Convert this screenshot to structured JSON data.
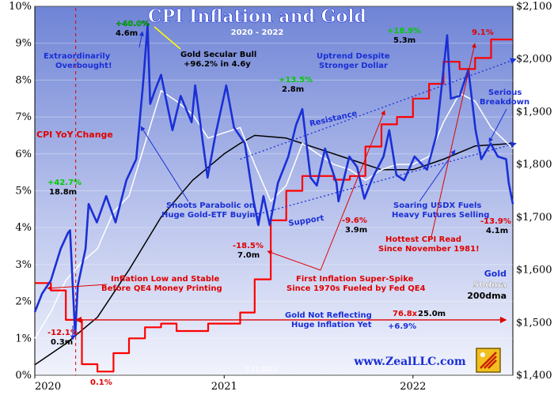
{
  "chart_data": {
    "type": "line",
    "title": "CPI Inflation and Gold",
    "subtitle": "2020 - 2022",
    "date_stamp": "7.13.2022",
    "brand": "www.ZealLLC.com",
    "x_range": [
      "2020-01-01",
      "2022-07-13"
    ],
    "x_tick_labels": [
      {
        "date": "2020-01-01",
        "label": "2020"
      },
      {
        "date": "2021-01-01",
        "label": "2021"
      },
      {
        "date": "2022-01-01",
        "label": "2022"
      }
    ],
    "left_axis": {
      "min": 0,
      "max": 10,
      "unit": "%",
      "ticks": [
        "0%",
        "1%",
        "2%",
        "3%",
        "4%",
        "5%",
        "6%",
        "7%",
        "8%",
        "9%",
        "10%"
      ]
    },
    "right_axis": {
      "min": 1400,
      "max": 2100,
      "ticks": [
        "$1,400",
        "$1,500",
        "$1,600",
        "$1,700",
        "$1,800",
        "$1,900",
        "$2,000",
        "$2,100"
      ]
    },
    "legend": {
      "cpi_label": "CPI YoY Change",
      "gold_label": "Gold",
      "dma50_label": "50dma",
      "dma200_label": "200dma"
    },
    "colors": {
      "cpi": "#ff0000",
      "gold": "#1a2fd6",
      "dma50": "#ffffff",
      "dma200": "#000000",
      "annotation_blue": "#1a2fd6",
      "annotation_red": "#e00000",
      "annotation_green": "#00aa00",
      "trend_line": "#1a2fd6",
      "bg_top": "#6f84d6",
      "bg_bottom": "#eef0fb"
    },
    "series": [
      {
        "name": "Gold",
        "axis": "right",
        "points": [
          [
            "2020-01-01",
            1520
          ],
          [
            "2020-01-15",
            1555
          ],
          [
            "2020-02-01",
            1580
          ],
          [
            "2020-02-20",
            1640
          ],
          [
            "2020-03-05",
            1670
          ],
          [
            "2020-03-09",
            1675
          ],
          [
            "2020-03-19",
            1475
          ],
          [
            "2020-03-24",
            1570
          ],
          [
            "2020-04-08",
            1640
          ],
          [
            "2020-04-14",
            1725
          ],
          [
            "2020-04-30",
            1690
          ],
          [
            "2020-05-18",
            1740
          ],
          [
            "2020-06-05",
            1690
          ],
          [
            "2020-06-26",
            1770
          ],
          [
            "2020-07-15",
            1810
          ],
          [
            "2020-07-28",
            1950
          ],
          [
            "2020-08-06",
            2065
          ],
          [
            "2020-08-11",
            1915
          ],
          [
            "2020-08-20",
            1940
          ],
          [
            "2020-09-01",
            1970
          ],
          [
            "2020-09-23",
            1865
          ],
          [
            "2020-10-09",
            1930
          ],
          [
            "2020-10-30",
            1880
          ],
          [
            "2020-11-06",
            1950
          ],
          [
            "2020-11-30",
            1775
          ],
          [
            "2020-12-15",
            1855
          ],
          [
            "2021-01-05",
            1950
          ],
          [
            "2021-01-20",
            1870
          ],
          [
            "2021-02-10",
            1840
          ],
          [
            "2021-02-26",
            1735
          ],
          [
            "2021-03-08",
            1685
          ],
          [
            "2021-03-18",
            1740
          ],
          [
            "2021-03-30",
            1685
          ],
          [
            "2021-04-15",
            1765
          ],
          [
            "2021-05-05",
            1815
          ],
          [
            "2021-05-20",
            1875
          ],
          [
            "2021-06-01",
            1905
          ],
          [
            "2021-06-17",
            1775
          ],
          [
            "2021-06-29",
            1760
          ],
          [
            "2021-07-15",
            1830
          ],
          [
            "2021-08-06",
            1765
          ],
          [
            "2021-08-10",
            1730
          ],
          [
            "2021-08-31",
            1815
          ],
          [
            "2021-09-15",
            1795
          ],
          [
            "2021-09-29",
            1735
          ],
          [
            "2021-10-15",
            1775
          ],
          [
            "2021-11-05",
            1815
          ],
          [
            "2021-11-16",
            1865
          ],
          [
            "2021-11-30",
            1780
          ],
          [
            "2021-12-15",
            1770
          ],
          [
            "2022-01-04",
            1815
          ],
          [
            "2022-01-28",
            1790
          ],
          [
            "2022-02-15",
            1855
          ],
          [
            "2022-02-24",
            1935
          ],
          [
            "2022-03-08",
            2045
          ],
          [
            "2022-03-15",
            1925
          ],
          [
            "2022-04-01",
            1930
          ],
          [
            "2022-04-18",
            1980
          ],
          [
            "2022-05-02",
            1865
          ],
          [
            "2022-05-13",
            1810
          ],
          [
            "2022-05-31",
            1840
          ],
          [
            "2022-06-14",
            1815
          ],
          [
            "2022-06-30",
            1810
          ],
          [
            "2022-07-05",
            1765
          ],
          [
            "2022-07-13",
            1725
          ]
        ]
      },
      {
        "name": "50dma",
        "axis": "right",
        "points": [
          [
            "2020-01-01",
            1470
          ],
          [
            "2020-02-01",
            1520
          ],
          [
            "2020-03-01",
            1580
          ],
          [
            "2020-04-01",
            1615
          ],
          [
            "2020-05-01",
            1640
          ],
          [
            "2020-06-01",
            1710
          ],
          [
            "2020-07-01",
            1740
          ],
          [
            "2020-08-01",
            1840
          ],
          [
            "2020-09-01",
            1940
          ],
          [
            "2020-10-01",
            1920
          ],
          [
            "2020-11-01",
            1895
          ],
          [
            "2020-12-01",
            1850
          ],
          [
            "2021-01-01",
            1860
          ],
          [
            "2021-02-01",
            1870
          ],
          [
            "2021-03-01",
            1800
          ],
          [
            "2021-04-01",
            1730
          ],
          [
            "2021-05-01",
            1760
          ],
          [
            "2021-06-01",
            1840
          ],
          [
            "2021-07-01",
            1820
          ],
          [
            "2021-08-01",
            1800
          ],
          [
            "2021-09-01",
            1790
          ],
          [
            "2021-10-01",
            1770
          ],
          [
            "2021-11-01",
            1790
          ],
          [
            "2021-12-01",
            1800
          ],
          [
            "2022-01-01",
            1800
          ],
          [
            "2022-02-01",
            1815
          ],
          [
            "2022-03-01",
            1880
          ],
          [
            "2022-04-01",
            1935
          ],
          [
            "2022-05-01",
            1920
          ],
          [
            "2022-06-01",
            1870
          ],
          [
            "2022-07-13",
            1830
          ]
        ]
      },
      {
        "name": "200dma",
        "axis": "right",
        "points": [
          [
            "2020-01-01",
            1420
          ],
          [
            "2020-03-01",
            1460
          ],
          [
            "2020-05-01",
            1510
          ],
          [
            "2020-07-01",
            1600
          ],
          [
            "2020-09-01",
            1700
          ],
          [
            "2020-11-01",
            1770
          ],
          [
            "2021-01-01",
            1820
          ],
          [
            "2021-02-01",
            1840
          ],
          [
            "2021-03-01",
            1855
          ],
          [
            "2021-05-01",
            1850
          ],
          [
            "2021-07-01",
            1830
          ],
          [
            "2021-09-01",
            1810
          ],
          [
            "2021-11-01",
            1790
          ],
          [
            "2022-01-01",
            1790
          ],
          [
            "2022-03-01",
            1810
          ],
          [
            "2022-05-01",
            1835
          ],
          [
            "2022-07-13",
            1840
          ]
        ]
      },
      {
        "name": "CPI YoY Change",
        "axis": "left",
        "step": true,
        "points": [
          [
            "2020-01-01",
            2.5
          ],
          [
            "2020-02-01",
            2.3
          ],
          [
            "2020-03-01",
            1.5
          ],
          [
            "2020-04-01",
            0.3
          ],
          [
            "2020-05-01",
            0.1
          ],
          [
            "2020-06-01",
            0.6
          ],
          [
            "2020-07-01",
            1.0
          ],
          [
            "2020-08-01",
            1.3
          ],
          [
            "2020-09-01",
            1.4
          ],
          [
            "2020-10-01",
            1.2
          ],
          [
            "2020-11-01",
            1.2
          ],
          [
            "2020-12-01",
            1.4
          ],
          [
            "2021-01-01",
            1.4
          ],
          [
            "2021-02-01",
            1.7
          ],
          [
            "2021-03-01",
            2.6
          ],
          [
            "2021-04-01",
            4.2
          ],
          [
            "2021-05-01",
            5.0
          ],
          [
            "2021-06-01",
            5.4
          ],
          [
            "2021-07-01",
            5.4
          ],
          [
            "2021-08-01",
            5.3
          ],
          [
            "2021-09-01",
            5.4
          ],
          [
            "2021-10-01",
            6.2
          ],
          [
            "2021-11-01",
            6.8
          ],
          [
            "2021-12-01",
            7.0
          ],
          [
            "2022-01-01",
            7.5
          ],
          [
            "2022-02-01",
            7.9
          ],
          [
            "2022-03-01",
            8.5
          ],
          [
            "2022-04-01",
            8.3
          ],
          [
            "2022-05-01",
            8.6
          ],
          [
            "2022-06-01",
            9.1
          ],
          [
            "2022-07-13",
            9.1
          ]
        ]
      }
    ],
    "trendlines": [
      {
        "name": "Resistance",
        "from": [
          "2021-02-01",
          1810
        ],
        "to": [
          "2022-07-13",
          2000
        ]
      },
      {
        "name": "Support",
        "from": [
          "2021-02-15",
          1700
        ],
        "to": [
          "2022-07-13",
          1840
        ]
      }
    ],
    "reference_lines": [
      {
        "name": "horizontal-arrow",
        "axis": "right",
        "value": 1505,
        "from": "2020-03-20",
        "to": "2022-06-30"
      }
    ],
    "annotations": [
      {
        "text": "+40.0%",
        "color": "green"
      },
      {
        "text": "4.6m",
        "color": "black"
      },
      {
        "text": "Extraordinarily",
        "color": "blue"
      },
      {
        "text": "Overbought!",
        "color": "blue"
      },
      {
        "text": "Gold Secular Bull",
        "color": "black"
      },
      {
        "text": "+96.2% in 4.6y",
        "color": "black"
      },
      {
        "text": "+18.9%",
        "color": "green"
      },
      {
        "text": "5.3m",
        "color": "black"
      },
      {
        "text": "9.1%",
        "color": "red"
      },
      {
        "text": "Uptrend Despite",
        "color": "blue"
      },
      {
        "text": "Stronger Dollar",
        "color": "blue"
      },
      {
        "text": "+13.5%",
        "color": "green"
      },
      {
        "text": "2.8m",
        "color": "black"
      },
      {
        "text": "Resistance",
        "color": "blue"
      },
      {
        "text": "Serious",
        "color": "blue"
      },
      {
        "text": "Breakdown",
        "color": "blue"
      },
      {
        "text": "+42.7%",
        "color": "green"
      },
      {
        "text": "18.8m",
        "color": "black"
      },
      {
        "text": "Shoots Parabolic on",
        "color": "blue"
      },
      {
        "text": "Huge Gold-ETF Buying",
        "color": "blue"
      },
      {
        "text": "Support",
        "color": "blue"
      },
      {
        "text": "-9.6%",
        "color": "red"
      },
      {
        "text": "3.9m",
        "color": "black"
      },
      {
        "text": "Soaring USDX Fuels",
        "color": "blue"
      },
      {
        "text": "Heavy Futures Selling",
        "color": "blue"
      },
      {
        "text": "-13.9%",
        "color": "red"
      },
      {
        "text": "4.1m",
        "color": "black"
      },
      {
        "text": "-18.5%",
        "color": "red"
      },
      {
        "text": "7.0m",
        "color": "black"
      },
      {
        "text": "Hottest CPI Read",
        "color": "red"
      },
      {
        "text": "Since November 1981!",
        "color": "red"
      },
      {
        "text": "Inflation Low and Stable",
        "color": "red"
      },
      {
        "text": "Before QE4 Money Printing",
        "color": "red"
      },
      {
        "text": "First Inflation Super-Spike",
        "color": "red"
      },
      {
        "text": "Since 1970s Fueled by Fed QE4",
        "color": "red"
      },
      {
        "text": "Gold Not Reflecting",
        "color": "blue"
      },
      {
        "text": "Huge Inflation Yet",
        "color": "blue"
      },
      {
        "text": "76.8x",
        "color": "red"
      },
      {
        "text": "25.0m",
        "color": "black"
      },
      {
        "text": "+6.9%",
        "color": "blue"
      },
      {
        "text": "-12.1%",
        "color": "red"
      },
      {
        "text": "0.3m",
        "color": "black"
      },
      {
        "text": "0.1%",
        "color": "red"
      }
    ]
  }
}
